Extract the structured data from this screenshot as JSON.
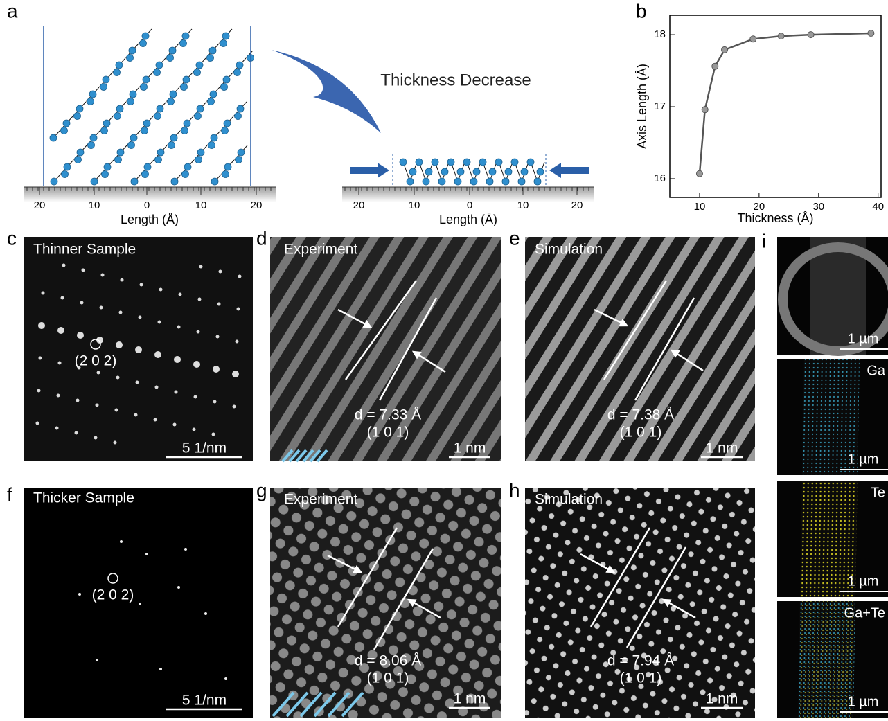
{
  "panels": {
    "a": {
      "label": "a",
      "annotation": "Thickness Decrease",
      "ruler_left": {
        "ticks": [
          20,
          10,
          0,
          10,
          20
        ],
        "label": "Length (Å)"
      },
      "ruler_right": {
        "ticks": [
          20,
          10,
          0,
          10,
          20
        ],
        "label": "Length (Å)"
      }
    },
    "c": {
      "label": "c",
      "title": "Thinner Sample",
      "spot": "(2 0 2)",
      "scale_bar": "5 1/nm"
    },
    "d": {
      "label": "d",
      "title": "Experiment",
      "spacing": "d = 7.33 Å",
      "plane": "(1 0 1)",
      "scale_bar": "1 nm"
    },
    "e": {
      "label": "e",
      "title": "Simulation",
      "spacing": "d = 7.38 Å",
      "plane": "(1 0 1)",
      "scale_bar": "1 nm"
    },
    "f": {
      "label": "f",
      "title": "Thicker Sample",
      "spot": "(2 0 2)",
      "scale_bar": "5 1/nm"
    },
    "g": {
      "label": "g",
      "title": "Experiment",
      "spacing": "d = 8.06 Å",
      "plane": "(1 0 1)",
      "scale_bar": "1 nm"
    },
    "h": {
      "label": "h",
      "title": "Simulation",
      "spacing": "d = 7.94 Å",
      "plane": "(1 0 1)",
      "scale_bar": "1 nm"
    },
    "i": {
      "label": "i",
      "maps": [
        {
          "scale_bar": "1 µm"
        },
        {
          "title": "Ga",
          "scale_bar": "1 µm"
        },
        {
          "title": "Te",
          "scale_bar": "1 µm"
        },
        {
          "title": "Ga+Te",
          "scale_bar": "1 µm"
        }
      ]
    }
  },
  "chart_data": {
    "type": "line",
    "label": "b",
    "xlabel": "Thickness (Å)",
    "ylabel": "Axis Length (Å)",
    "x": [
      10,
      10.9,
      12.6,
      14.2,
      19.0,
      23.7,
      28.7,
      38.8
    ],
    "values": [
      16.07,
      16.96,
      17.56,
      17.79,
      17.94,
      17.98,
      18.0,
      18.02
    ],
    "color": "#555555",
    "xlim": [
      5,
      40.5
    ],
    "ylim": [
      15.74,
      18.27
    ],
    "xticks": [
      10,
      20,
      30,
      40
    ],
    "yticks": [
      16,
      17,
      18
    ]
  }
}
